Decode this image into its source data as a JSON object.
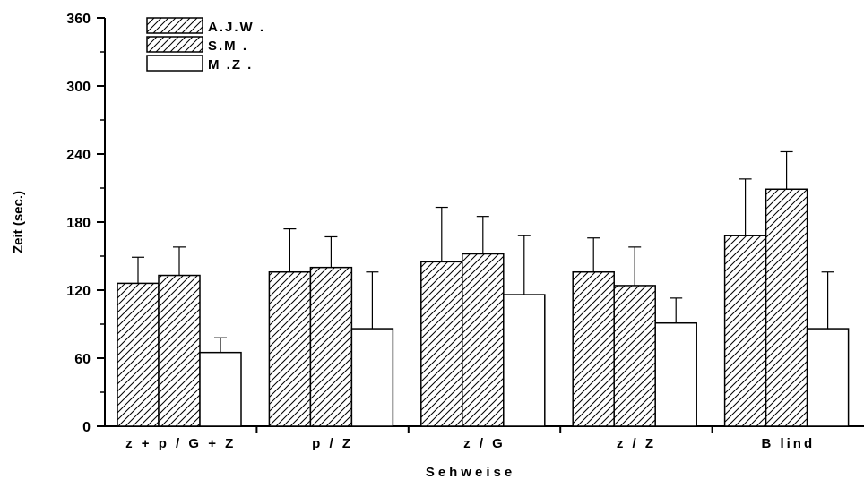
{
  "chart_data": {
    "type": "bar",
    "title": "",
    "xlabel": "Sehweise",
    "ylabel": "Zeit (sec.)",
    "ylim": [
      0,
      360
    ],
    "yticks": [
      0,
      60,
      120,
      180,
      240,
      300,
      360
    ],
    "ytick_labels": [
      "0",
      "60",
      "120",
      "180",
      "240",
      "300",
      "360"
    ],
    "categories": [
      "z + p / G + Z",
      "p / Z",
      "z / G",
      "z / Z",
      "B lind"
    ],
    "series": [
      {
        "name": "A.J.W .",
        "fill": "hatch",
        "values": [
          126,
          136,
          145,
          136,
          168
        ],
        "errors": [
          23,
          38,
          48,
          30,
          50
        ]
      },
      {
        "name": "S.M .",
        "fill": "hatch",
        "values": [
          133,
          140,
          152,
          124,
          209
        ],
        "errors": [
          25,
          27,
          33,
          34,
          33
        ]
      },
      {
        "name": "M .Z .",
        "fill": "none",
        "values": [
          65,
          86,
          116,
          91,
          86
        ],
        "errors": [
          13,
          50,
          52,
          22,
          50
        ]
      }
    ],
    "legend_position": "top-left",
    "grid": false,
    "colors": {
      "stroke": "#000000",
      "background": "#ffffff"
    }
  }
}
